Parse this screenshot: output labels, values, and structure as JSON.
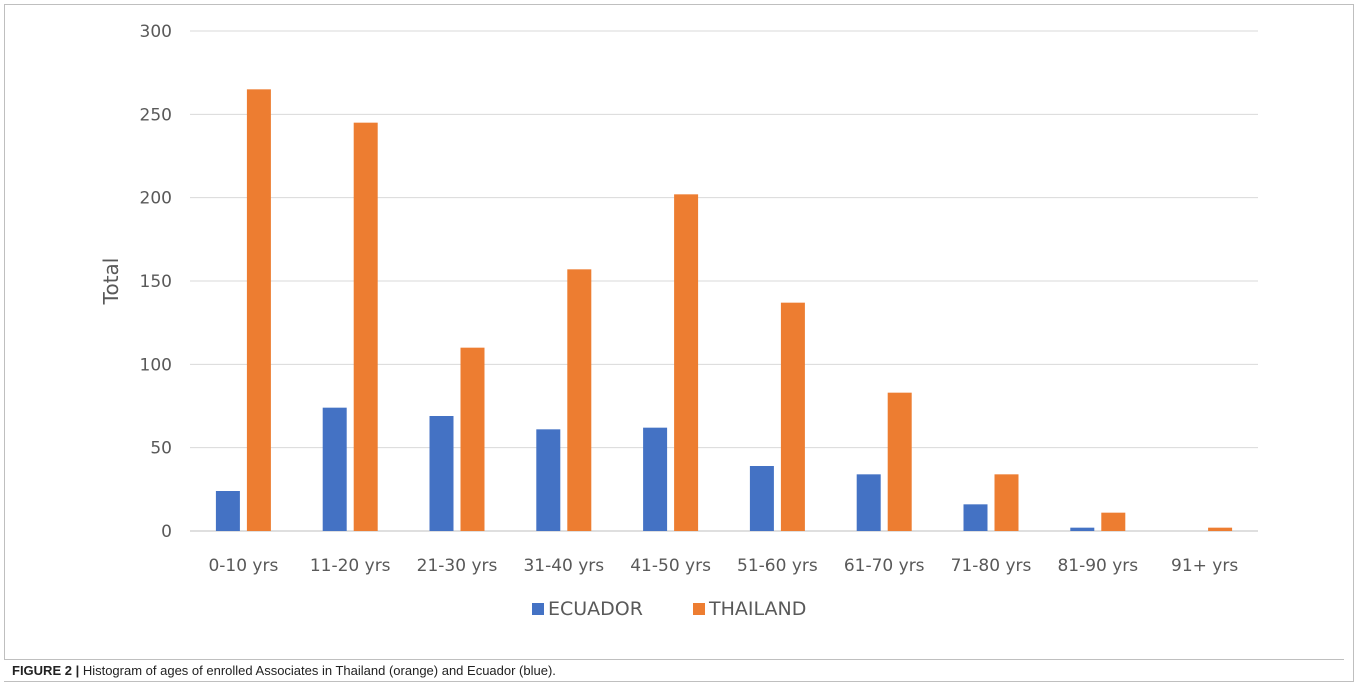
{
  "chart_data": {
    "type": "bar",
    "title": "",
    "xlabel": "",
    "ylabel": "Total",
    "ylim": [
      0,
      300
    ],
    "yticks": [
      0,
      50,
      100,
      150,
      200,
      250,
      300
    ],
    "grid": true,
    "legend_position": "bottom",
    "categories": [
      "0-10 yrs",
      "11-20 yrs",
      "21-30 yrs",
      "31-40 yrs",
      "41-50 yrs",
      "51-60 yrs",
      "61-70 yrs",
      "71-80 yrs",
      "81-90 yrs",
      "91+ yrs"
    ],
    "series": [
      {
        "name": "ECUADOR",
        "color": "#4472c4",
        "values": [
          24,
          74,
          69,
          61,
          62,
          39,
          34,
          16,
          2,
          0
        ]
      },
      {
        "name": "THAILAND",
        "color": "#ed7d31",
        "values": [
          265,
          245,
          110,
          157,
          202,
          137,
          83,
          34,
          11,
          2
        ]
      }
    ]
  },
  "caption": {
    "label": "FIGURE 2 |",
    "text": " Histogram of ages of enrolled Associates in Thailand (orange) and Ecuador (blue)."
  }
}
